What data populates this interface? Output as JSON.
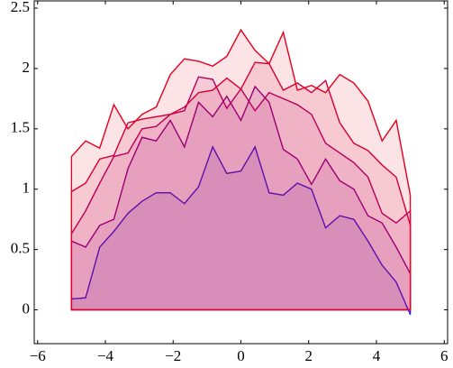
{
  "chart_data": {
    "type": "line",
    "fill": true,
    "x": [
      -5,
      -4.583,
      -4.167,
      -3.75,
      -3.333,
      -2.917,
      -2.5,
      -2.083,
      -1.667,
      -1.25,
      -0.833,
      -0.417,
      0,
      0.417,
      0.833,
      1.25,
      1.667,
      2.083,
      2.5,
      2.917,
      3.333,
      3.75,
      4.167,
      4.583,
      5
    ],
    "series": [
      {
        "color": "#2a1ee6",
        "values": [
          0.09,
          0.1,
          0.52,
          0.65,
          0.8,
          0.9,
          0.97,
          0.97,
          0.88,
          1.02,
          1.35,
          1.13,
          1.15,
          1.35,
          0.97,
          0.95,
          1.05,
          1.0,
          0.68,
          0.78,
          0.75,
          0.57,
          0.37,
          0.23,
          -0.04
        ]
      },
      {
        "color": "#8a0090",
        "values": [
          0.57,
          0.52,
          0.7,
          0.75,
          1.17,
          1.43,
          1.4,
          1.57,
          1.35,
          1.72,
          1.6,
          1.77,
          1.57,
          1.85,
          1.72,
          1.33,
          1.25,
          1.04,
          1.25,
          1.07,
          1.0,
          0.78,
          0.72,
          0.52,
          0.3
        ]
      },
      {
        "color": "#b0006a",
        "values": [
          0.63,
          0.82,
          1.05,
          1.27,
          1.3,
          1.5,
          1.52,
          1.62,
          1.65,
          1.93,
          1.91,
          1.67,
          1.83,
          1.65,
          1.8,
          1.75,
          1.7,
          1.62,
          1.38,
          1.3,
          1.22,
          1.1,
          0.8,
          0.72,
          0.82
        ]
      },
      {
        "color": "#d4003a",
        "values": [
          0.98,
          1.05,
          1.25,
          1.28,
          1.55,
          1.58,
          1.6,
          1.62,
          1.68,
          1.8,
          1.82,
          1.92,
          1.83,
          2.05,
          2.04,
          1.82,
          1.88,
          1.8,
          1.9,
          1.55,
          1.38,
          1.32,
          1.2,
          1.1,
          0.7
        ]
      },
      {
        "color": "#e8001e",
        "values": [
          1.27,
          1.4,
          1.34,
          1.7,
          1.5,
          1.62,
          1.68,
          1.95,
          2.08,
          2.06,
          2.02,
          2.1,
          2.32,
          2.15,
          2.04,
          2.3,
          1.82,
          1.86,
          1.8,
          1.95,
          1.88,
          1.73,
          1.4,
          1.57,
          0.95
        ]
      }
    ],
    "xlim": [
      -6.1,
      6.1
    ],
    "ylim": [
      -0.28,
      2.56
    ],
    "xticks": [
      {
        "value": -6,
        "label": "−6"
      },
      {
        "value": -4,
        "label": "−4"
      },
      {
        "value": -2,
        "label": "−2"
      },
      0,
      2,
      4,
      6
    ],
    "yticks": [
      0,
      0.5,
      1,
      1.5,
      2,
      2.5
    ]
  }
}
